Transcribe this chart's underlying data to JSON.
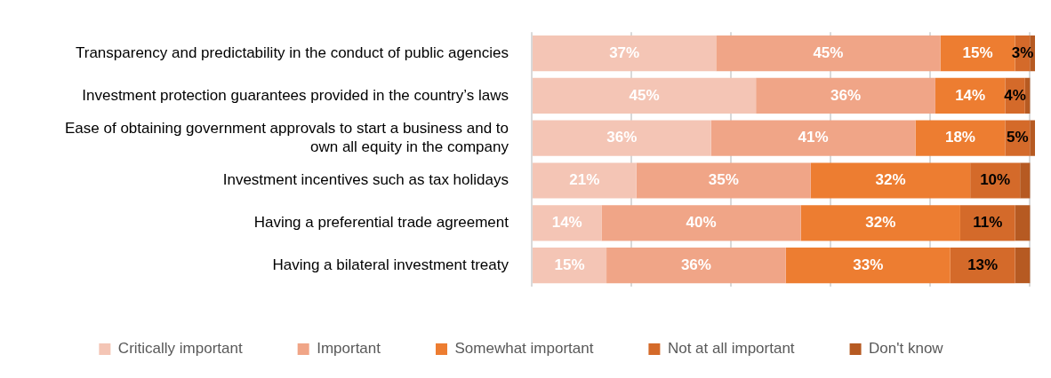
{
  "chart_data": {
    "type": "bar",
    "orientation": "horizontal",
    "stacked": true,
    "categories": [
      "Transparency and predictability in the conduct of public agencies",
      "Investment protection guarantees provided in the country’s laws",
      "Ease of obtaining government approvals to start a business and to own all equity in the company",
      "Investment incentives such as tax holidays",
      "Having a preferential trade agreement",
      "Having a bilateral investment treaty"
    ],
    "series": [
      {
        "name": "Critically important",
        "color": "#f4c5b5",
        "values": [
          37,
          45,
          36,
          21,
          14,
          15
        ],
        "value_labels": [
          "37%",
          "45%",
          "36%",
          "21%",
          "14%",
          "15%"
        ]
      },
      {
        "name": "Important",
        "color": "#f0a587",
        "values": [
          45,
          36,
          41,
          35,
          40,
          36
        ],
        "value_labels": [
          "45%",
          "36%",
          "41%",
          "35%",
          "40%",
          "36%"
        ]
      },
      {
        "name": "Somewhat important",
        "color": "#ed7d31",
        "values": [
          15,
          14,
          18,
          32,
          32,
          33
        ],
        "value_labels": [
          "15%",
          "14%",
          "18%",
          "32%",
          "32%",
          "33%"
        ]
      },
      {
        "name": "Not at all important",
        "color": "#d46a2a",
        "values": [
          3,
          4,
          5,
          10,
          11,
          13
        ],
        "value_labels": [
          "3%",
          "4%",
          "5%",
          "10%",
          "11%",
          "13%"
        ]
      },
      {
        "name": "Don't know",
        "color": "#b65a22",
        "values": [
          1,
          1,
          1,
          2,
          3,
          3
        ],
        "value_labels": [
          null,
          null,
          null,
          null,
          null,
          null
        ]
      }
    ],
    "xlim": [
      0,
      101
    ],
    "xticks": [
      {
        "value": 0,
        "label": null
      },
      {
        "value": 20,
        "label": null
      },
      {
        "value": 40,
        "label": null
      },
      {
        "value": 60,
        "label": null
      },
      {
        "value": 80,
        "label": null
      },
      {
        "value": 100,
        "label": null
      }
    ],
    "tick_labels": "y",
    "grid": "x",
    "legend": "bottom"
  }
}
